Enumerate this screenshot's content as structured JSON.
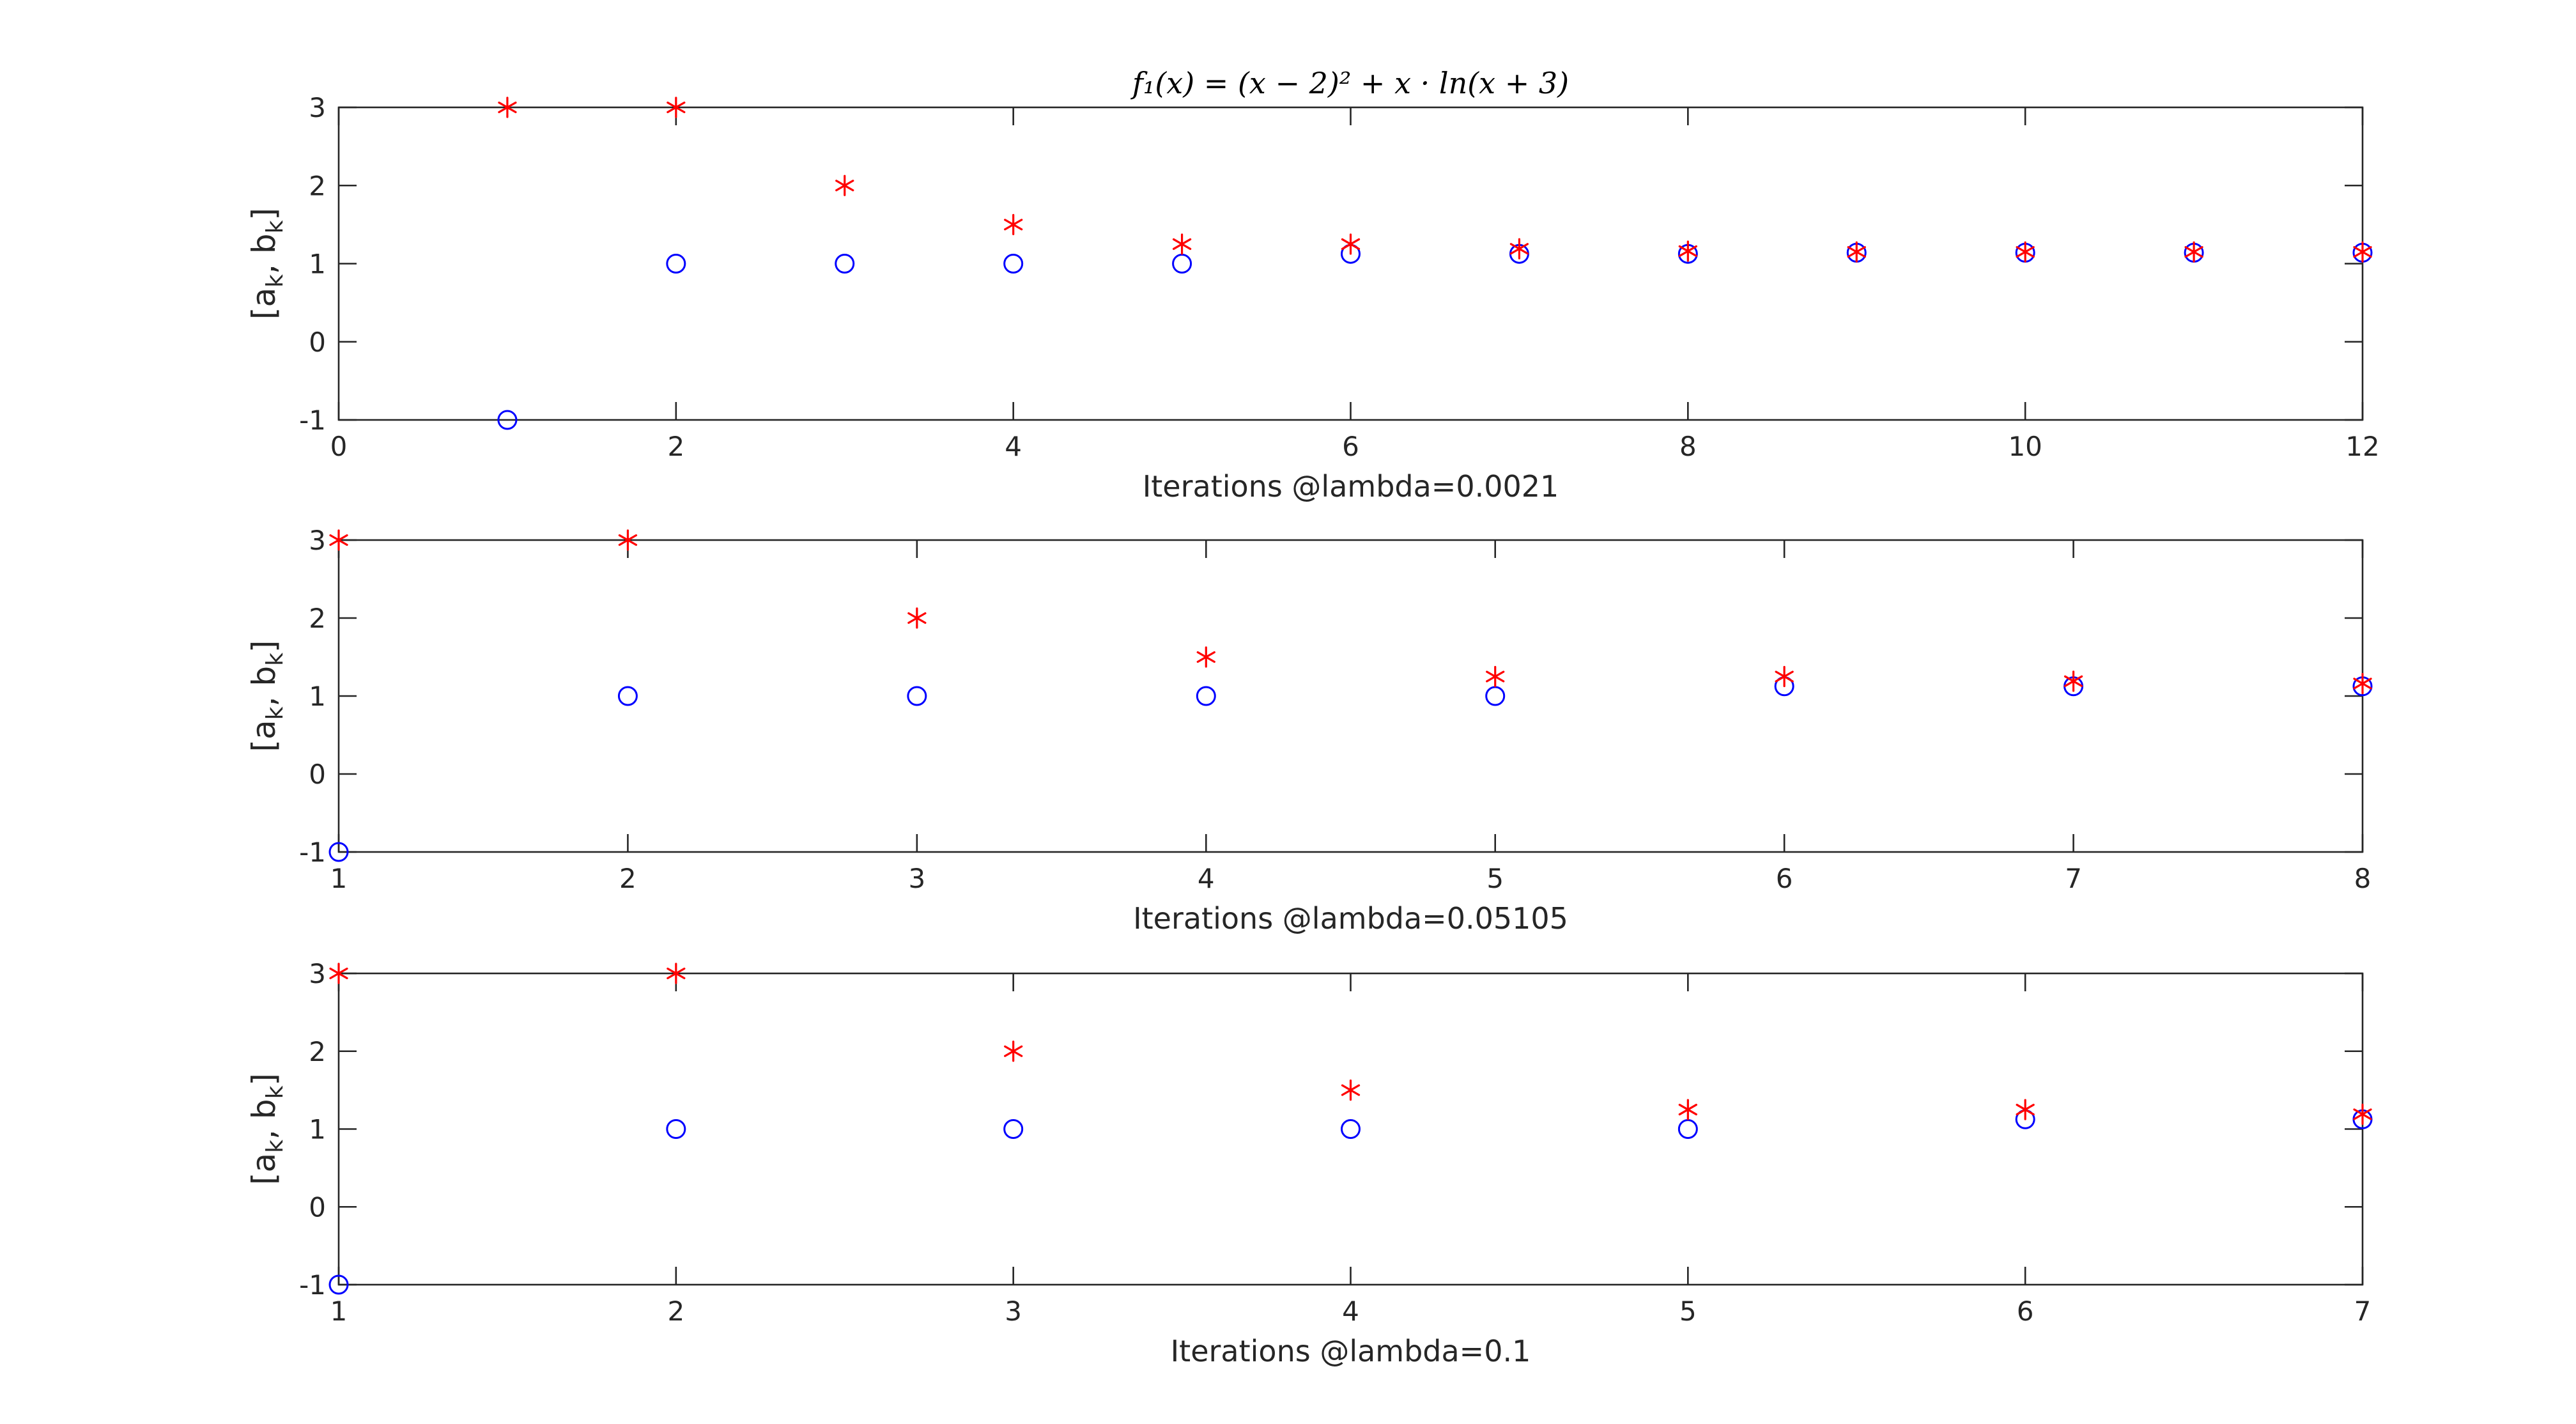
{
  "chart_data": [
    {
      "type": "scatter",
      "title": "f₁(x) = (x − 2)² + x · ln(x + 3)",
      "xlabel": "Iterations @lambda=0.0021",
      "ylabel": "[a_k, b_k]",
      "ylabel_parts": [
        "[a",
        "k",
        ", b",
        "k",
        "]"
      ],
      "xlim": [
        0,
        12
      ],
      "ylim": [
        -1,
        3
      ],
      "xticks": [
        0,
        2,
        4,
        6,
        8,
        10,
        12
      ],
      "yticks": [
        -1,
        0,
        1,
        2,
        3
      ],
      "grid": false,
      "series": [
        {
          "marker": "circle",
          "color": "#0000ff",
          "x": [
            1,
            2,
            3,
            4,
            5,
            6,
            7,
            8,
            9,
            10,
            11,
            12
          ],
          "values": [
            -1,
            1,
            1,
            1,
            1,
            1.125,
            1.125,
            1.125,
            1.14,
            1.14,
            1.14,
            1.14
          ]
        },
        {
          "marker": "asterisk",
          "color": "#ff0000",
          "x": [
            1,
            2,
            3,
            4,
            5,
            6,
            7,
            8,
            9,
            10,
            11,
            12
          ],
          "values": [
            3,
            3,
            2,
            1.5,
            1.25,
            1.25,
            1.19,
            1.16,
            1.15,
            1.15,
            1.15,
            1.15
          ]
        }
      ]
    },
    {
      "type": "scatter",
      "title": "",
      "xlabel": "Iterations @lambda=0.05105",
      "ylabel": "[a_k, b_k]",
      "ylabel_parts": [
        "[a",
        "k",
        ", b",
        "k",
        "]"
      ],
      "xlim": [
        1,
        8
      ],
      "ylim": [
        -1,
        3
      ],
      "xticks": [
        1,
        2,
        3,
        4,
        5,
        6,
        7,
        8
      ],
      "yticks": [
        -1,
        0,
        1,
        2,
        3
      ],
      "grid": false,
      "series": [
        {
          "marker": "circle",
          "color": "#0000ff",
          "x": [
            1,
            2,
            3,
            4,
            5,
            6,
            7,
            8
          ],
          "values": [
            -1,
            1,
            1,
            1,
            1,
            1.125,
            1.125,
            1.125
          ]
        },
        {
          "marker": "asterisk",
          "color": "#ff0000",
          "x": [
            1,
            2,
            3,
            4,
            5,
            6,
            7,
            8
          ],
          "values": [
            3,
            3,
            2,
            1.5,
            1.25,
            1.25,
            1.19,
            1.16
          ]
        }
      ]
    },
    {
      "type": "scatter",
      "title": "",
      "xlabel": "Iterations @lambda=0.1",
      "ylabel": "[a_k, b_k]",
      "ylabel_parts": [
        "[a",
        "k",
        ", b",
        "k",
        "]"
      ],
      "xlim": [
        1,
        7
      ],
      "ylim": [
        -1,
        3
      ],
      "xticks": [
        1,
        2,
        3,
        4,
        5,
        6,
        7
      ],
      "yticks": [
        -1,
        0,
        1,
        2,
        3
      ],
      "grid": false,
      "series": [
        {
          "marker": "circle",
          "color": "#0000ff",
          "x": [
            1,
            2,
            3,
            4,
            5,
            6,
            7
          ],
          "values": [
            -1,
            1,
            1,
            1,
            1,
            1.125,
            1.125
          ]
        },
        {
          "marker": "asterisk",
          "color": "#ff0000",
          "x": [
            1,
            2,
            3,
            4,
            5,
            6,
            7
          ],
          "values": [
            3,
            3,
            2,
            1.5,
            1.25,
            1.25,
            1.19
          ]
        }
      ]
    }
  ]
}
